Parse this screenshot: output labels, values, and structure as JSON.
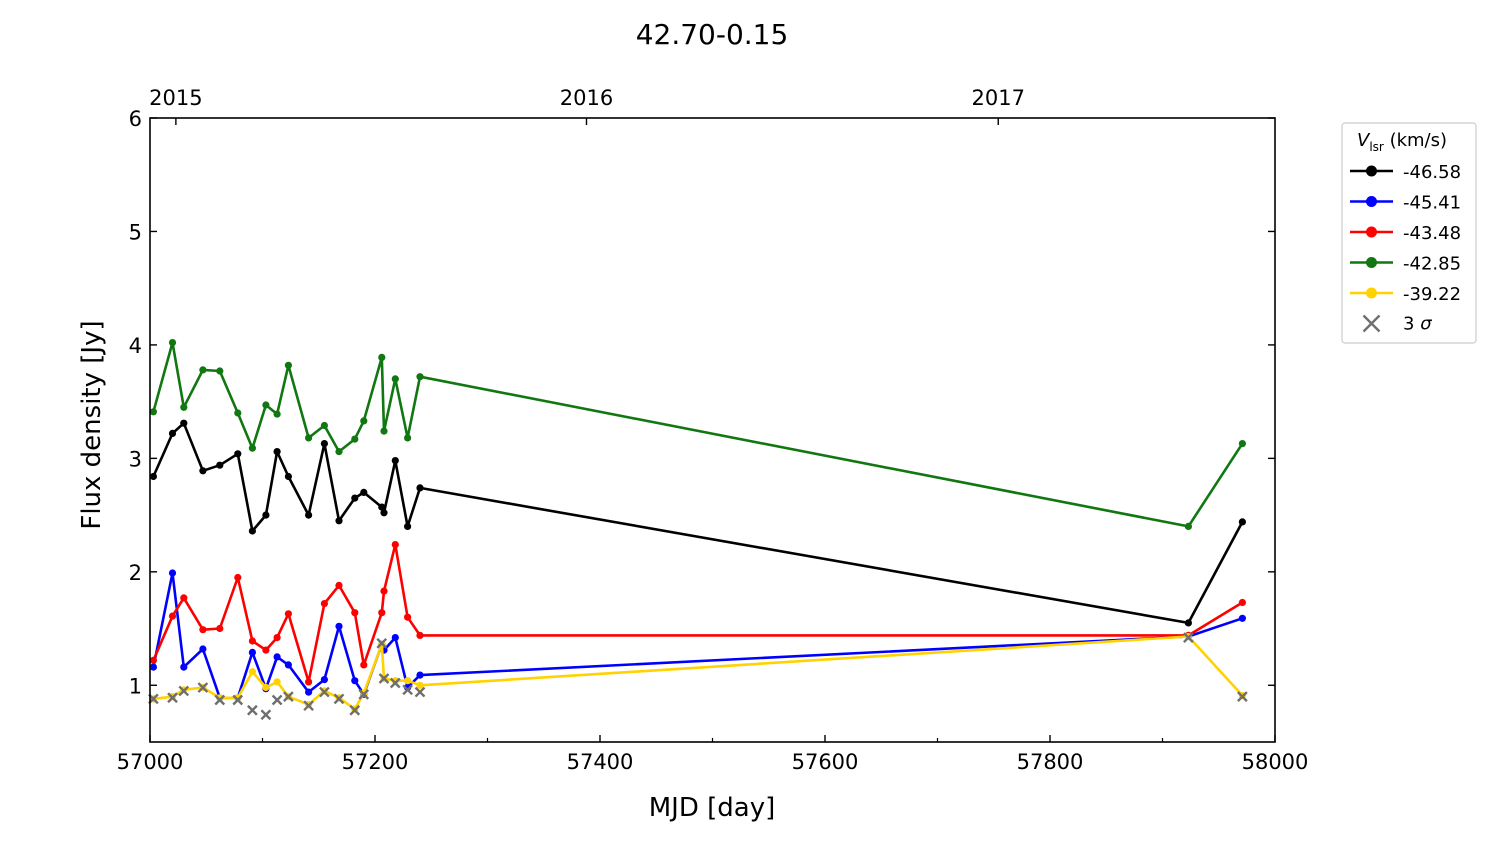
{
  "chart_data": {
    "type": "line",
    "title": "42.70-0.15",
    "xlabel": "MJD [day]",
    "ylabel": "Flux density [Jy]",
    "xlim": [
      57000,
      58000
    ],
    "ylim": [
      0.5,
      6
    ],
    "x_ticks": [
      57000,
      57200,
      57400,
      57600,
      57800,
      58000
    ],
    "x_minor_ticks": [
      57100,
      57300,
      57500,
      57700,
      57900
    ],
    "y_ticks": [
      1,
      2,
      3,
      4,
      5,
      6
    ],
    "top_axis": {
      "ticks": [
        {
          "label": "2015",
          "mjd": 57023
        },
        {
          "label": "2016",
          "mjd": 57388
        },
        {
          "label": "2017",
          "mjd": 57754
        }
      ]
    },
    "legend": {
      "title_italic": "V",
      "title_sub": "lsr",
      "title_rest": " (km/s)",
      "placement": "outside-right-top",
      "limit_label_prefix": "3 ",
      "limit_label_symbol": "σ"
    },
    "x": [
      57003,
      57020,
      57030,
      57047,
      57062,
      57078,
      57091,
      57103,
      57113,
      57123,
      57141,
      57155,
      57168,
      57182,
      57190,
      57206,
      57208,
      57218,
      57229,
      57240,
      57923,
      57971
    ],
    "series": [
      {
        "name": "-46.58",
        "color": "#000000",
        "values": [
          2.84,
          3.22,
          3.31,
          2.89,
          2.94,
          3.04,
          2.36,
          2.5,
          3.06,
          2.84,
          2.5,
          3.13,
          2.45,
          2.65,
          2.7,
          2.57,
          2.52,
          2.98,
          2.4,
          2.74,
          1.55,
          2.44
        ]
      },
      {
        "name": "-45.41",
        "color": "#0000ff",
        "values": [
          1.16,
          1.99,
          1.16,
          1.32,
          0.89,
          0.89,
          1.29,
          0.97,
          1.25,
          1.18,
          0.94,
          1.05,
          1.52,
          1.04,
          0.92,
          1.36,
          1.31,
          1.42,
          0.98,
          1.09,
          1.43,
          1.59
        ]
      },
      {
        "name": "-43.48",
        "color": "#ff0000",
        "values": [
          1.22,
          1.61,
          1.77,
          1.49,
          1.5,
          1.95,
          1.39,
          1.31,
          1.42,
          1.63,
          1.03,
          1.72,
          1.88,
          1.64,
          1.18,
          1.64,
          1.83,
          2.24,
          1.6,
          1.44,
          1.44,
          1.73
        ]
      },
      {
        "name": "-42.85",
        "color": "#117711",
        "values": [
          3.41,
          4.02,
          3.45,
          3.78,
          3.77,
          3.4,
          3.09,
          3.47,
          3.39,
          3.82,
          3.18,
          3.29,
          3.06,
          3.17,
          3.33,
          3.89,
          3.24,
          3.7,
          3.18,
          3.72,
          2.4,
          3.13
        ]
      },
      {
        "name": "-39.22",
        "color": "#ffd200",
        "values": [
          0.88,
          0.9,
          0.96,
          0.98,
          0.89,
          0.89,
          1.12,
          0.98,
          1.03,
          0.9,
          0.83,
          0.95,
          0.89,
          0.79,
          0.93,
          1.36,
          1.06,
          1.04,
          1.04,
          1.0,
          1.43,
          0.91
        ]
      }
    ],
    "upper_limits_3sigma": [
      {
        "x": 57003,
        "y": 0.88
      },
      {
        "x": 57020,
        "y": 0.89
      },
      {
        "x": 57030,
        "y": 0.95
      },
      {
        "x": 57047,
        "y": 0.98
      },
      {
        "x": 57062,
        "y": 0.87
      },
      {
        "x": 57078,
        "y": 0.87
      },
      {
        "x": 57091,
        "y": 0.78
      },
      {
        "x": 57103,
        "y": 0.74
      },
      {
        "x": 57113,
        "y": 0.87
      },
      {
        "x": 57123,
        "y": 0.9
      },
      {
        "x": 57141,
        "y": 0.82
      },
      {
        "x": 57155,
        "y": 0.94
      },
      {
        "x": 57168,
        "y": 0.88
      },
      {
        "x": 57182,
        "y": 0.78
      },
      {
        "x": 57190,
        "y": 0.92
      },
      {
        "x": 57206,
        "y": 1.37
      },
      {
        "x": 57208,
        "y": 1.06
      },
      {
        "x": 57218,
        "y": 1.02
      },
      {
        "x": 57229,
        "y": 0.96
      },
      {
        "x": 57240,
        "y": 0.94
      },
      {
        "x": 57923,
        "y": 1.42
      },
      {
        "x": 57971,
        "y": 0.9
      }
    ]
  }
}
